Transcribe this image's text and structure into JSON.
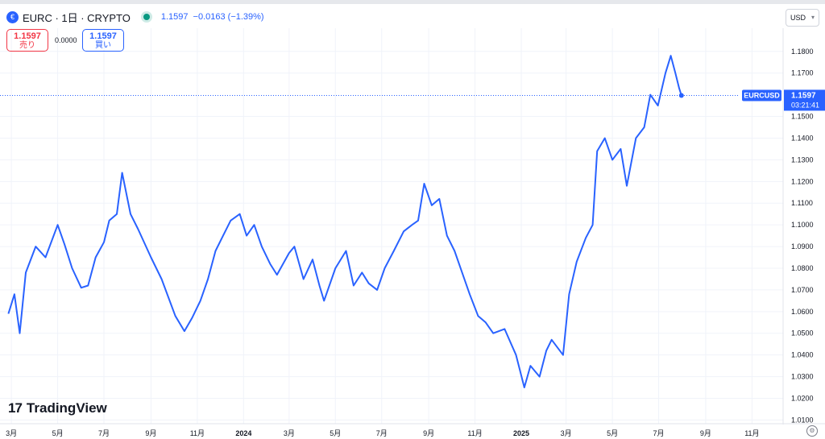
{
  "header": {
    "title": "EURC · 1日 · CRYPTO",
    "last": "1.1597",
    "change": "−0.0163 (−1.39%)",
    "symbol_icon": "eurc-coin-icon",
    "status_icon": "market-open-dot-icon"
  },
  "trade": {
    "sell_price": "1.1597",
    "sell_label": "売り",
    "spread": "0.0000",
    "buy_price": "1.1597",
    "buy_label": "買い"
  },
  "currency": "USD",
  "price_tag": {
    "symbol": "EURCUSD",
    "price": "1.1597",
    "countdown": "03:21:41"
  },
  "brand": "TradingView",
  "colors": {
    "line": "#2962ff",
    "sell": "#f23645",
    "buy": "#2962ff",
    "live": "#089981"
  },
  "chart_data": {
    "type": "line",
    "title": "",
    "xlabel": "",
    "ylabel": "",
    "x_ticks": [
      "3月",
      "5月",
      "7月",
      "9月",
      "11月",
      "2024",
      "3月",
      "5月",
      "7月",
      "9月",
      "11月",
      "2025",
      "3月",
      "5月",
      "7月",
      "9月",
      "11月"
    ],
    "x_tick_bold": [
      "2024",
      "2025"
    ],
    "y_ticks": [
      "1.1800",
      "1.1700",
      "1.1500",
      "1.1400",
      "1.1300",
      "1.1200",
      "1.1100",
      "1.1000",
      "1.0900",
      "1.0800",
      "1.0700",
      "1.0600",
      "1.0500",
      "1.0400",
      "1.0300",
      "1.0200",
      "1.0100"
    ],
    "ylim": [
      1.0083,
      1.1907
    ],
    "xlim": [
      "2023-02-14",
      "2025-12-12"
    ],
    "grid": true,
    "last_value": 1.1597,
    "x": [
      "2023-02-25",
      "2023-03-05",
      "2023-03-12",
      "2023-03-20",
      "2023-04-02",
      "2023-04-15",
      "2023-05-01",
      "2023-05-10",
      "2023-05-20",
      "2023-06-01",
      "2023-06-10",
      "2023-06-20",
      "2023-07-01",
      "2023-07-08",
      "2023-07-18",
      "2023-07-25",
      "2023-08-05",
      "2023-08-15",
      "2023-09-01",
      "2023-09-15",
      "2023-10-03",
      "2023-10-15",
      "2023-10-25",
      "2023-11-05",
      "2023-11-15",
      "2023-11-25",
      "2023-12-05",
      "2023-12-15",
      "2023-12-27",
      "2024-01-05",
      "2024-01-15",
      "2024-01-25",
      "2024-02-05",
      "2024-02-14",
      "2024-03-01",
      "2024-03-08",
      "2024-03-20",
      "2024-04-01",
      "2024-04-10",
      "2024-04-16",
      "2024-05-01",
      "2024-05-15",
      "2024-05-25",
      "2024-06-05",
      "2024-06-14",
      "2024-06-25",
      "2024-07-05",
      "2024-07-17",
      "2024-07-30",
      "2024-08-10",
      "2024-08-18",
      "2024-08-26",
      "2024-09-05",
      "2024-09-15",
      "2024-09-25",
      "2024-10-05",
      "2024-10-15",
      "2024-10-25",
      "2024-11-05",
      "2024-11-15",
      "2024-11-25",
      "2024-12-10",
      "2024-12-25",
      "2025-01-05",
      "2025-01-13",
      "2025-01-25",
      "2025-02-03",
      "2025-02-10",
      "2025-02-25",
      "2025-03-05",
      "2025-03-15",
      "2025-03-27",
      "2025-04-05",
      "2025-04-11",
      "2025-04-21",
      "2025-05-01",
      "2025-05-12",
      "2025-05-20",
      "2025-06-01",
      "2025-06-12",
      "2025-06-20",
      "2025-06-30",
      "2025-07-10",
      "2025-07-17",
      "2025-07-23",
      "2025-07-28",
      "2025-07-31"
    ],
    "y": [
      1.059,
      1.068,
      1.05,
      1.078,
      1.09,
      1.085,
      1.1,
      1.091,
      1.08,
      1.071,
      1.072,
      1.085,
      1.092,
      1.102,
      1.105,
      1.124,
      1.105,
      1.098,
      1.085,
      1.075,
      1.058,
      1.051,
      1.057,
      1.065,
      1.075,
      1.088,
      1.095,
      1.102,
      1.105,
      1.095,
      1.1,
      1.09,
      1.082,
      1.077,
      1.087,
      1.09,
      1.075,
      1.084,
      1.072,
      1.065,
      1.08,
      1.088,
      1.072,
      1.078,
      1.073,
      1.07,
      1.08,
      1.088,
      1.097,
      1.1,
      1.102,
      1.119,
      1.109,
      1.112,
      1.095,
      1.088,
      1.078,
      1.068,
      1.058,
      1.055,
      1.05,
      1.052,
      1.04,
      1.025,
      1.035,
      1.03,
      1.042,
      1.047,
      1.04,
      1.068,
      1.083,
      1.094,
      1.1,
      1.134,
      1.14,
      1.13,
      1.135,
      1.118,
      1.14,
      1.145,
      1.16,
      1.155,
      1.17,
      1.178,
      1.17,
      1.163,
      1.1597
    ]
  }
}
